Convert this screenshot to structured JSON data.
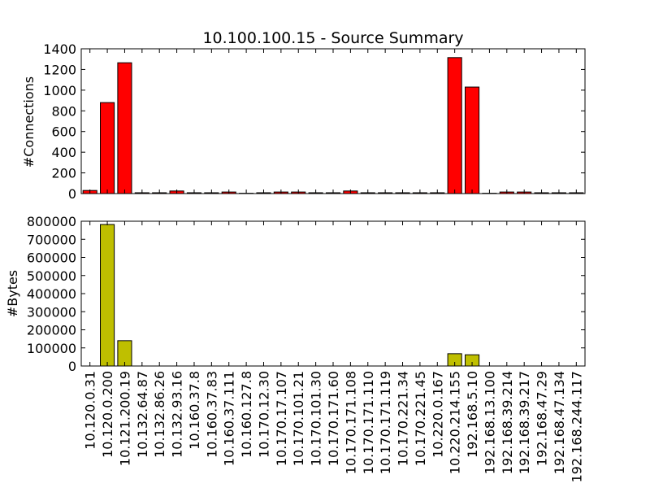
{
  "title": "10.100.100.15 - Source Summary",
  "chart_data": [
    {
      "type": "bar",
      "ylabel": "#Connections",
      "ylim": [
        0,
        1400
      ],
      "yticks": [
        0,
        200,
        400,
        600,
        800,
        1000,
        1200,
        1400
      ],
      "ytick_labels": [
        "0",
        "200",
        "400",
        "600",
        "800",
        "1000",
        "1200",
        "1400"
      ],
      "color": "#ff0000",
      "categories": [
        "10.120.0.31",
        "10.120.0.200",
        "10.121.200.19",
        "10.132.64.87",
        "10.132.86.26",
        "10.132.93.16",
        "10.160.37.8",
        "10.160.37.83",
        "10.160.37.111",
        "10.160.127.8",
        "10.170.12.30",
        "10.170.17.107",
        "10.170.101.21",
        "10.170.101.30",
        "10.170.171.60",
        "10.170.171.108",
        "10.170.171.110",
        "10.170.171.119",
        "10.170.221.34",
        "10.170.221.45",
        "10.220.0.167",
        "10.220.214.155",
        "192.168.5.10",
        "192.168.13.100",
        "192.168.39.214",
        "192.168.39.217",
        "192.168.47.29",
        "192.168.47.134",
        "192.168.244.117"
      ],
      "values": [
        30,
        880,
        1265,
        8,
        8,
        25,
        8,
        8,
        15,
        3,
        8,
        15,
        15,
        8,
        8,
        25,
        8,
        8,
        8,
        8,
        8,
        1315,
        1030,
        3,
        15,
        15,
        8,
        8,
        8
      ]
    },
    {
      "type": "bar",
      "ylabel": "#Bytes",
      "ylim": [
        0,
        800000
      ],
      "yticks": [
        0,
        100000,
        200000,
        300000,
        400000,
        500000,
        600000,
        700000,
        800000
      ],
      "ytick_labels": [
        "0",
        "100000",
        "200000",
        "300000",
        "400000",
        "500000",
        "600000",
        "700000",
        "800000"
      ],
      "color": "#bfbf00",
      "categories": [
        "10.120.0.31",
        "10.120.0.200",
        "10.121.200.19",
        "10.132.64.87",
        "10.132.86.26",
        "10.132.93.16",
        "10.160.37.8",
        "10.160.37.83",
        "10.160.37.111",
        "10.160.127.8",
        "10.170.12.30",
        "10.170.17.107",
        "10.170.101.21",
        "10.170.101.30",
        "10.170.171.60",
        "10.170.171.108",
        "10.170.171.110",
        "10.170.171.119",
        "10.170.221.34",
        "10.170.221.45",
        "10.220.0.167",
        "10.220.214.155",
        "192.168.5.10",
        "192.168.13.100",
        "192.168.39.214",
        "192.168.39.217",
        "192.168.47.29",
        "192.168.47.134",
        "192.168.244.117"
      ],
      "values": [
        0,
        782000,
        140000,
        0,
        0,
        0,
        0,
        0,
        0,
        0,
        0,
        0,
        0,
        0,
        0,
        0,
        0,
        0,
        0,
        0,
        0,
        68000,
        62000,
        0,
        0,
        0,
        0,
        0,
        0
      ]
    }
  ]
}
